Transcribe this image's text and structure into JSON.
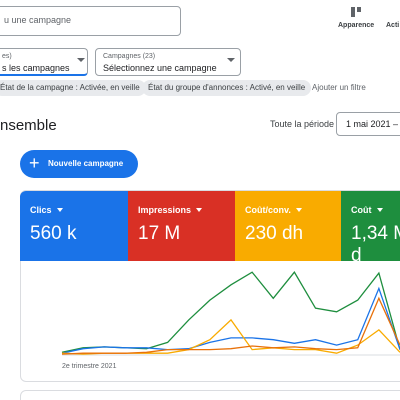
{
  "header": {
    "search_placeholder": "u une campagne",
    "appearance": "Apparence",
    "actions": "Acti"
  },
  "selectors": [
    {
      "label": "es)",
      "value": "s les campagnes"
    },
    {
      "label": "Campagnes (23)",
      "value": "Sélectionnez une campagne"
    }
  ],
  "filters": [
    "État de la campagne : Activée, en veille",
    "État du groupe d'annonces : Activé, en veille"
  ],
  "add_filter": "Ajouter un filtre",
  "section_title": "nsemble",
  "period_label": "Toute la période",
  "date_range": "1 mai 2021 – 2",
  "new_campaign_button": "Nouvelle campagne",
  "metrics": [
    {
      "name": "Clics",
      "value": "560 k",
      "color": "#1a73e8"
    },
    {
      "name": "Impressions",
      "value": "17 M",
      "color": "#d93025"
    },
    {
      "name": "Coût/conv.",
      "value": "230 dh",
      "color": "#f9ab00"
    },
    {
      "name": "Coût",
      "value": "1,34 M d",
      "color": "#1e8e3e"
    }
  ],
  "chart_data": {
    "type": "line",
    "x_label": "2e trimestre 2021",
    "ylim": [
      0,
      100
    ],
    "series": [
      {
        "color": "#1e8e3e",
        "values": [
          3,
          8,
          9,
          8,
          7,
          14,
          39,
          61,
          78,
          92,
          63,
          92,
          52,
          48,
          61,
          91,
          6
        ]
      },
      {
        "color": "#1a73e8",
        "values": [
          2,
          7,
          9,
          8,
          8,
          6,
          7,
          14,
          19,
          19,
          17,
          13,
          17,
          11,
          17,
          74,
          6
        ]
      },
      {
        "color": "#f9ab00",
        "values": [
          2,
          1,
          2,
          2,
          2,
          2,
          6,
          17,
          39,
          6,
          8,
          6,
          6,
          2,
          11,
          28,
          3
        ]
      },
      {
        "color": "#e8710a",
        "values": [
          1,
          2,
          2,
          2,
          3,
          6,
          6,
          6,
          7,
          10,
          8,
          9,
          7,
          6,
          8,
          63,
          11
        ]
      }
    ]
  }
}
